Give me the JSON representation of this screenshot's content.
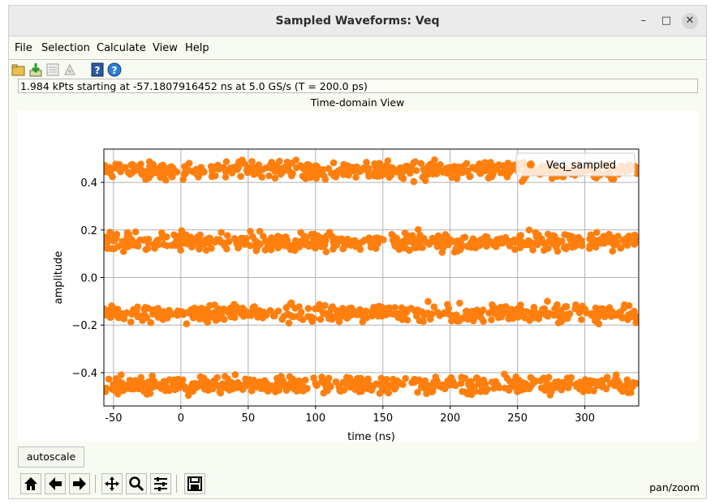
{
  "window": {
    "title": "Sampled Waveforms: Veq"
  },
  "menu": [
    "File",
    "Selection",
    "Calculate",
    "View",
    "Help"
  ],
  "info_text": "1.984 kPts starting at -57.1807916452 ns at 5.0 GS/s (T = 200.0 ps)",
  "view_title": "Time-domain View",
  "autoscale_label": "autoscale",
  "mode_text": "pan/zoom",
  "colors": {
    "series": "#ff7f0e",
    "grid": "#b0b0b0",
    "axes": "#000000"
  },
  "toolbar_icons": [
    "open-folder-icon",
    "import-icon",
    "export-table-icon",
    "edit-sheet-icon",
    "help-book-icon",
    "help-icon"
  ],
  "nav_icons": [
    "home-icon",
    "back-arrow-icon",
    "forward-arrow-icon",
    "pan-move-icon",
    "zoom-icon",
    "configure-subplots-icon",
    "save-icon"
  ],
  "chart_data": {
    "type": "scatter",
    "xlabel": "time (ns)",
    "ylabel": "amplitude",
    "xlim": [
      -57.18,
      340
    ],
    "ylim": [
      -0.54,
      0.54
    ],
    "xticks": [
      -50,
      0,
      50,
      100,
      150,
      200,
      250,
      300
    ],
    "yticks": [
      -0.4,
      -0.2,
      0.0,
      0.2,
      0.4
    ],
    "grid": true,
    "legend_position": "top-right",
    "series": [
      {
        "name": "Veq_sampled",
        "levels": [
          0.45,
          0.15,
          -0.15,
          -0.45
        ],
        "noise_std": 0.018,
        "x_start": -57.18,
        "sample_period_ns": 0.2,
        "num_points": 1984
      }
    ]
  }
}
